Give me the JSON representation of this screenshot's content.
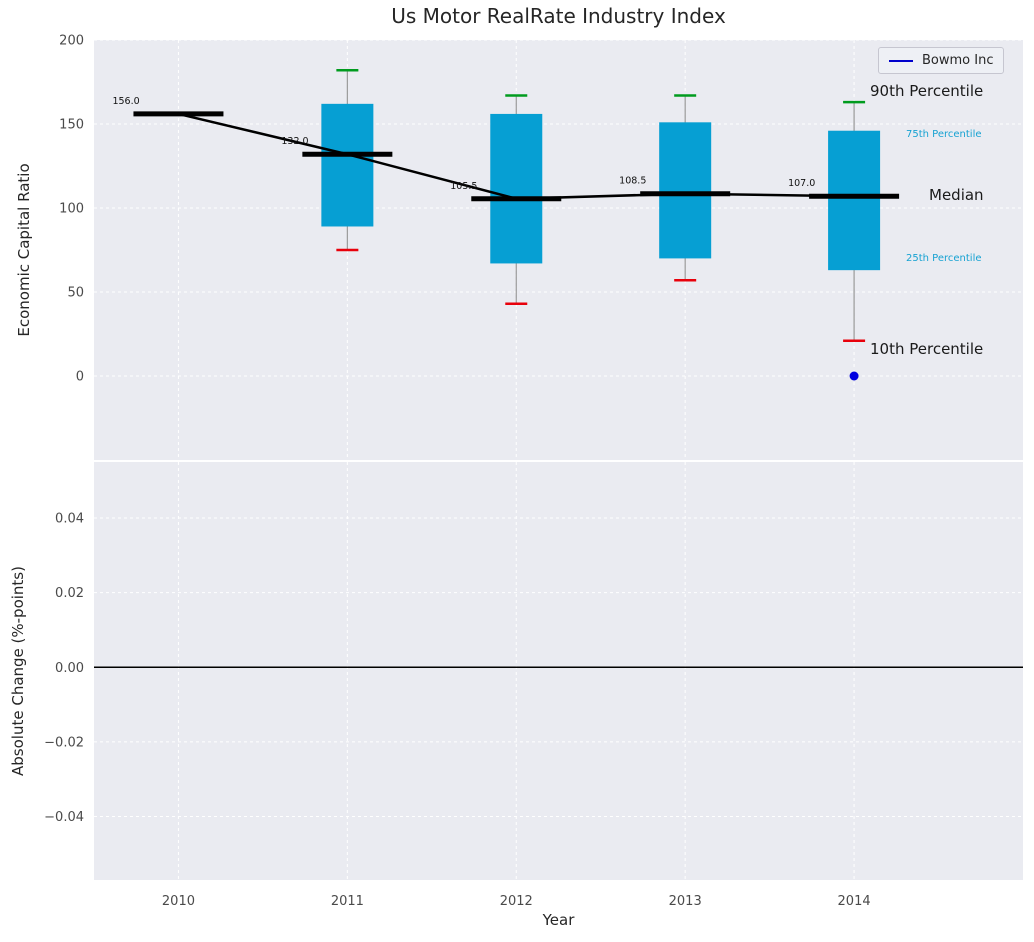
{
  "title": "Us Motor RealRate Industry Index",
  "legend": {
    "label": "Bowmo Inc",
    "line_color": "#0000cc"
  },
  "chart_data": {
    "type": "boxplot-timeseries",
    "xlabel": "Year",
    "years": [
      2010,
      2011,
      2012,
      2013,
      2014
    ],
    "top_panel": {
      "ylabel": "Economic Capital Ratio",
      "ylim": [
        -50,
        200
      ],
      "ytick_values": [
        0,
        50,
        100,
        150,
        200
      ],
      "ytick_labels": [
        "0",
        "50",
        "100",
        "150",
        "200"
      ],
      "series": {
        "median": [
          156.0,
          132.0,
          105.5,
          108.5,
          107.0
        ],
        "p75": [
          null,
          162,
          156,
          151,
          146
        ],
        "p25": [
          null,
          89,
          67,
          70,
          63
        ],
        "p90": [
          null,
          182,
          167,
          167,
          163
        ],
        "p10": [
          null,
          75,
          43,
          57,
          21
        ]
      },
      "median_labels": [
        "156.0",
        "132.0",
        "105.5",
        "108.5",
        "107.0"
      ],
      "company_point": {
        "year": 2014,
        "value": 0
      },
      "annotations": {
        "p90": "90th Percentile",
        "p75": "75th Percentile",
        "median": "Median",
        "p25": "25th Percentile",
        "p10": "10th Percentile"
      }
    },
    "bottom_panel": {
      "ylabel": "Absolute Change (%-points)",
      "ylim": [
        -0.057,
        0.055
      ],
      "ytick_values": [
        0.04,
        0.02,
        0.0,
        -0.02,
        -0.04
      ],
      "ytick_labels": [
        "0.04",
        "0.02",
        "0.00",
        "−0.02",
        "−0.04"
      ],
      "zero_line": 0
    },
    "xtick_labels": [
      "2010",
      "2011",
      "2012",
      "2013",
      "2014"
    ],
    "colors": {
      "panel_bg": "#eaebf1",
      "grid": "#ffffff",
      "box": "#069fd3",
      "p90_cap": "#009b1e",
      "p10_cap": "#e8000b",
      "median": "#000000",
      "whisker": "#9a9a9a",
      "company_point": "#0000e0",
      "percentile_text": "#17a2d2"
    }
  }
}
